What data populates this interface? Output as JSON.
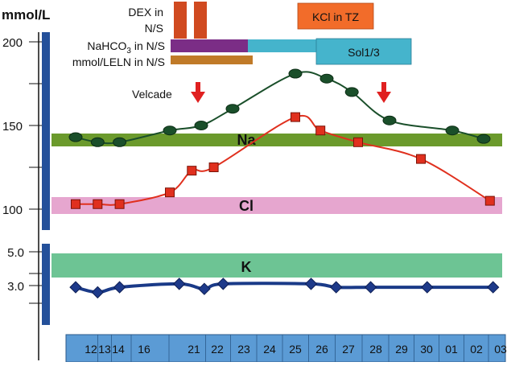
{
  "chart_data": {
    "type": "line",
    "ylabel": "mmol/L",
    "y_ticks_upper": [
      "200",
      "150",
      "100"
    ],
    "y_ticks_lower": [
      "5.0",
      "3.0"
    ],
    "x_tick_labels": [
      "12",
      "13",
      "14",
      "16",
      "21",
      "22",
      "23",
      "24",
      "25",
      "26",
      "27",
      "28",
      "29",
      "30",
      "01",
      "02",
      "03"
    ],
    "bands": [
      {
        "label": "Na",
        "color": "#6b9a2c"
      },
      {
        "label": "Cl",
        "color": "#e6a6cf"
      },
      {
        "label": "K",
        "color": "#6dc494"
      }
    ],
    "treatments": [
      {
        "label": "DEX in N/S",
        "color": "#d04a20"
      },
      {
        "label": "NaHCO3 in N/S",
        "color": "#7b2d86"
      },
      {
        "label": "mmol/LELN in N/S",
        "color": "#c07a28"
      },
      {
        "label": "Sol1/3",
        "color": "#45b4cc"
      },
      {
        "label": "KCl in TZ",
        "color": "#f26c2a"
      }
    ],
    "annotation": {
      "label": "Velcade",
      "color": "#e02020"
    },
    "series": [
      {
        "name": "Na",
        "color": "#1a4f2a",
        "x": [
          0.0,
          0.7,
          1.4,
          3.0,
          4.0,
          5.0,
          7.0,
          8.0,
          8.8,
          10.0,
          12.0,
          13.0
        ],
        "y": [
          143,
          140,
          140,
          147,
          150,
          160,
          181,
          178,
          170,
          153,
          147,
          142
        ]
      },
      {
        "name": "Cl",
        "color": "#e0301e",
        "x": [
          0.0,
          0.7,
          1.4,
          3.0,
          3.7,
          4.4,
          7.0,
          7.8,
          9.0,
          11.0,
          13.2
        ],
        "y": [
          103,
          103,
          103,
          110,
          123,
          125,
          155,
          147,
          140,
          130,
          105
        ]
      },
      {
        "name": "K",
        "color": "#1a3a88",
        "x": [
          0.0,
          0.7,
          1.4,
          3.3,
          4.1,
          4.7,
          7.5,
          8.3,
          9.4,
          11.2,
          13.3
        ],
        "y": [
          2.9,
          2.6,
          2.9,
          3.1,
          2.8,
          3.1,
          3.1,
          2.9,
          2.9,
          2.9,
          2.9
        ]
      }
    ]
  }
}
